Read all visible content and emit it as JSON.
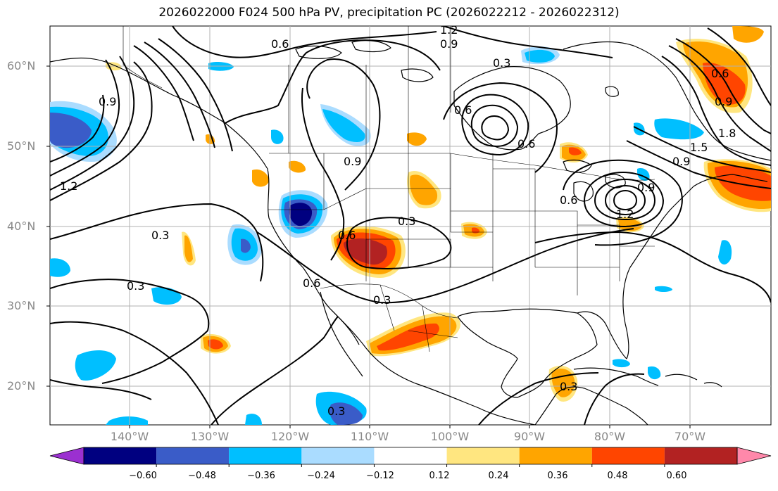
{
  "title": "2026022000 F024 500 hPa PV, precipitation PC (2026022212 - 2026022312)",
  "lat_labels": [
    "60°N",
    "50°N",
    "40°N",
    "30°N",
    "20°N"
  ],
  "lon_labels": [
    "140°W",
    "130°W",
    "120°W",
    "110°W",
    "100°W",
    "90°W",
    "80°W",
    "70°W"
  ],
  "contour_labels": [
    "1.2",
    "0.9",
    "0.6",
    "0.3",
    "1.2",
    "0.9",
    "0.6",
    "0.3",
    "0.6",
    "0.9",
    "0.6",
    "0.3",
    "0.3",
    "0.3",
    "0.3",
    "0.3",
    "0.6",
    "0.9",
    "1.2",
    "0.6",
    "0.9",
    "1.8",
    "1.5",
    "0.9",
    "0.6"
  ],
  "colorbar": {
    "labels": [
      "−0.60",
      "−0.48",
      "−0.36",
      "−0.24",
      "−0.12",
      "0.12",
      "0.24",
      "0.36",
      "0.48",
      "0.60"
    ],
    "colors": [
      "#9b30d0",
      "#000080",
      "#3a5cc8",
      "#00bfff",
      "#aadcff",
      "#ffffff",
      "#ffe680",
      "#ffa500",
      "#ff4500",
      "#b22222",
      "#ff88aa"
    ]
  },
  "colors": {
    "land_line": "#000000",
    "grid": "#b0b0b0"
  }
}
